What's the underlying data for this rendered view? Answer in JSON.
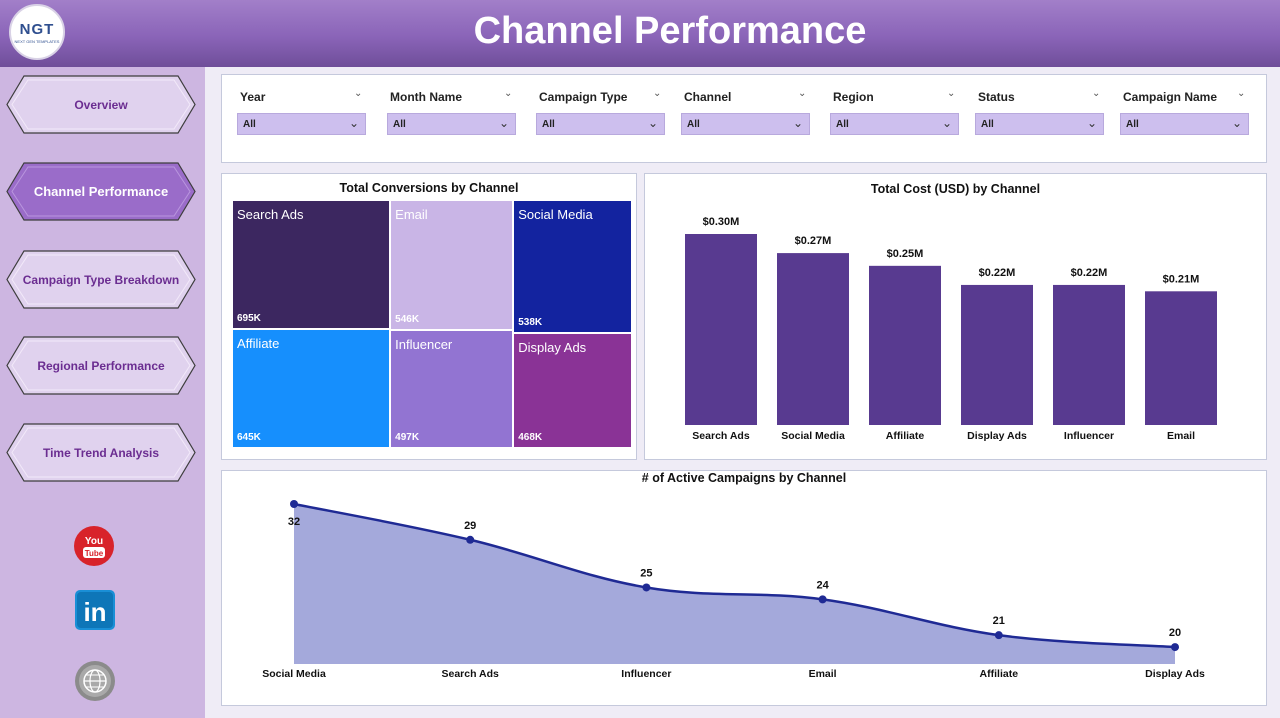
{
  "header": {
    "title": "Channel Performance",
    "logo_text": "NGT",
    "logo_subtext": "NEXT GEN TEMPLATES",
    "gradient_colors": [
      "#a27fc9",
      "#6f4e99"
    ]
  },
  "sidebar": {
    "items": [
      {
        "label": "Overview",
        "active": false
      },
      {
        "label": "Channel Performance",
        "active": true
      },
      {
        "label": "Campaign Type Breakdown",
        "active": false
      },
      {
        "label": "Regional Performance",
        "active": false
      },
      {
        "label": "Time Trend Analysis",
        "active": false
      }
    ],
    "social_icons": [
      "youtube-icon",
      "linkedin-icon",
      "globe-icon"
    ],
    "youtube_text": [
      "You",
      "Tube"
    ],
    "linkedin_text": "in"
  },
  "filters": [
    {
      "label": "Year",
      "value": "All"
    },
    {
      "label": "Month Name",
      "value": "All"
    },
    {
      "label": "Campaign Type",
      "value": "All"
    },
    {
      "label": "Channel",
      "value": "All"
    },
    {
      "label": "Region",
      "value": "All"
    },
    {
      "label": "Status",
      "value": "All"
    },
    {
      "label": "Campaign Name",
      "value": "All"
    }
  ],
  "chart_data": [
    {
      "type": "treemap",
      "title": "Total Conversions by Channel",
      "items": [
        {
          "name": "Search Ads",
          "value": 695,
          "label": "695K",
          "color": "#3c2760"
        },
        {
          "name": "Email",
          "value": 546,
          "label": "546K",
          "color": "#c9b5e6"
        },
        {
          "name": "Social Media",
          "value": 538,
          "label": "538K",
          "color": "#13239f"
        },
        {
          "name": "Affiliate",
          "value": 645,
          "label": "645K",
          "color": "#168ffd"
        },
        {
          "name": "Influencer",
          "value": 497,
          "label": "497K",
          "color": "#9274d2"
        },
        {
          "name": "Display Ads",
          "value": 468,
          "label": "468K",
          "color": "#8a3396"
        }
      ]
    },
    {
      "type": "bar",
      "title": "Total Cost (USD) by Channel",
      "categories": [
        "Search Ads",
        "Social Media",
        "Affiliate",
        "Display Ads",
        "Influencer",
        "Email"
      ],
      "values": [
        0.3,
        0.27,
        0.25,
        0.22,
        0.22,
        0.21
      ],
      "data_labels": [
        "$0.30M",
        "$0.27M",
        "$0.25M",
        "$0.22M",
        "$0.22M",
        "$0.21M"
      ],
      "ylim": [
        0,
        0.3
      ],
      "color": "#583a90",
      "grid": false
    },
    {
      "type": "area",
      "title": "# of Active Campaigns by Channel",
      "categories": [
        "Social Media",
        "Search Ads",
        "Influencer",
        "Email",
        "Affiliate",
        "Display Ads"
      ],
      "values": [
        32,
        29,
        25,
        24,
        21,
        20
      ],
      "ylim": [
        19,
        32
      ],
      "line_color": "#1f2a94",
      "fill_color": "#a4a9db",
      "grid": false
    }
  ]
}
